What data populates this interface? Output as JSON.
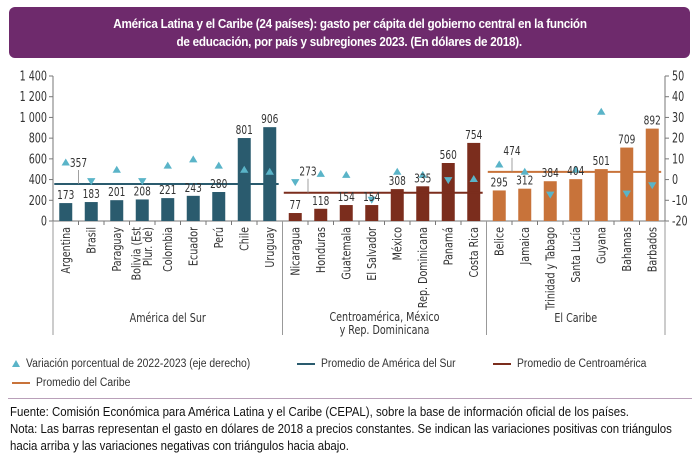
{
  "title": {
    "line1": "América Latina y el Caribe (24 países): gasto per cápita del gobierno central en la función",
    "line2": "de educación, por país y subregiones 2023. (En dólares de 2018)."
  },
  "colors": {
    "title_bg": "#6e2a6c",
    "america_sur": "#2a5b6e",
    "centroamerica": "#7b2d1d",
    "caribe": "#c8733a",
    "triangle": "#5ab4c8"
  },
  "chart_data": {
    "type": "bar",
    "title": "América Latina y el Caribe (24 países): gasto per cápita del gobierno central en la función de educación, por país y subregiones 2023. (En dólares de 2018).",
    "ylabel": "",
    "y2label": "",
    "ylim": [
      0,
      1400
    ],
    "yticks": [
      "0",
      "200",
      "400",
      "600",
      "800",
      "1 000",
      "1 200",
      "1 400"
    ],
    "y2lim": [
      -20,
      50
    ],
    "y2ticks": [
      "-20",
      "-10",
      "0",
      "10",
      "20",
      "30",
      "40",
      "50"
    ],
    "grid": false,
    "legend_position": "bottom",
    "categories": [
      "Argentina",
      "Brasil",
      "Paraguay",
      "Bolivia (Est Plur. de)",
      "Colombia",
      "Ecuador",
      "Perú",
      "Chile",
      "Uruguay",
      "Nicaragua",
      "Honduras",
      "Guatemala",
      "El Salvador",
      "México",
      "Rep. Dominicana",
      "Panamá",
      "Costa Rica",
      "Belice",
      "Jamaica",
      "Trinidad y Tabago",
      "Santa Lucía",
      "Guyana",
      "Bahamas",
      "Barbados"
    ],
    "category_lines": [
      [
        "Argentina"
      ],
      [
        "Brasil"
      ],
      [
        "Paraguay"
      ],
      [
        "Bolivia (Est",
        "Plur. de)"
      ],
      [
        "Colombia"
      ],
      [
        "Ecuador"
      ],
      [
        "Perú"
      ],
      [
        "Chile"
      ],
      [
        "Uruguay"
      ],
      [
        "Nicaragua"
      ],
      [
        "Honduras"
      ],
      [
        "Guatemala"
      ],
      [
        "El Salvador"
      ],
      [
        "México"
      ],
      [
        "Rep. Dominicana"
      ],
      [
        "Panamá"
      ],
      [
        "Costa Rica"
      ],
      [
        "Belice"
      ],
      [
        "Jamaica"
      ],
      [
        "Trinidad y Tabago"
      ],
      [
        "Santa Lucía"
      ],
      [
        "Guyana"
      ],
      [
        "Bahamas"
      ],
      [
        "Barbados"
      ]
    ],
    "groups": [
      {
        "name": "América del Sur",
        "label_lines": [
          "América del Sur"
        ],
        "start": 0,
        "end": 8,
        "color_key": "america_sur",
        "average": 357,
        "average_label": "357"
      },
      {
        "name": "Centroamérica, México y Rep. Dominicana",
        "label_lines": [
          "Centroamérica, México",
          "y Rep. Dominicana"
        ],
        "start": 9,
        "end": 16,
        "color_key": "centroamerica",
        "average": 273,
        "average_label": "273"
      },
      {
        "name": "El Caribe",
        "label_lines": [
          "El Caribe"
        ],
        "start": 17,
        "end": 23,
        "color_key": "caribe",
        "average": 474,
        "average_label": "474"
      }
    ],
    "series": [
      {
        "name": "Gasto per cápita (dólares de 2018)",
        "axis": "left",
        "type": "bar",
        "values": [
          173,
          183,
          201,
          208,
          221,
          243,
          280,
          801,
          906,
          77,
          118,
          154,
          154,
          308,
          335,
          560,
          754,
          295,
          312,
          384,
          404,
          501,
          709,
          892
        ]
      },
      {
        "name": "Variación porcentual de 2022-2023 (eje derecho)",
        "axis": "right",
        "type": "scatter",
        "marker": "triangle",
        "values": [
          8.5,
          -1,
          5,
          -1,
          7,
          10,
          7,
          5,
          4,
          -1.5,
          3,
          2.5,
          -10,
          4,
          2.5,
          -0.5,
          0.5,
          7.5,
          4,
          -7.5,
          5,
          33,
          -7,
          -3
        ]
      }
    ]
  },
  "legend": {
    "items": [
      {
        "label": "Variación porcentual de 2022-2023 (eje derecho)",
        "type": "triangle"
      },
      {
        "label": "Promedio de América del Sur",
        "type": "line",
        "color_key": "america_sur"
      },
      {
        "label": "Promedio de Centroamérica",
        "type": "line",
        "color_key": "centroamerica"
      },
      {
        "label": "Promedio del Caribe",
        "type": "line",
        "color_key": "caribe"
      }
    ]
  },
  "footer": {
    "source": "Fuente: Comisión Económica para América Latina y el Caribe (CEPAL), sobre la base de información oficial de los países.",
    "note_line1": "Nota: Las barras representan el gasto en dólares de 2018 a precios constantes. Se indican las variaciones positivas con triángulos",
    "note_line2": "hacia arriba y las variaciones negativas con triángulos hacia abajo."
  }
}
